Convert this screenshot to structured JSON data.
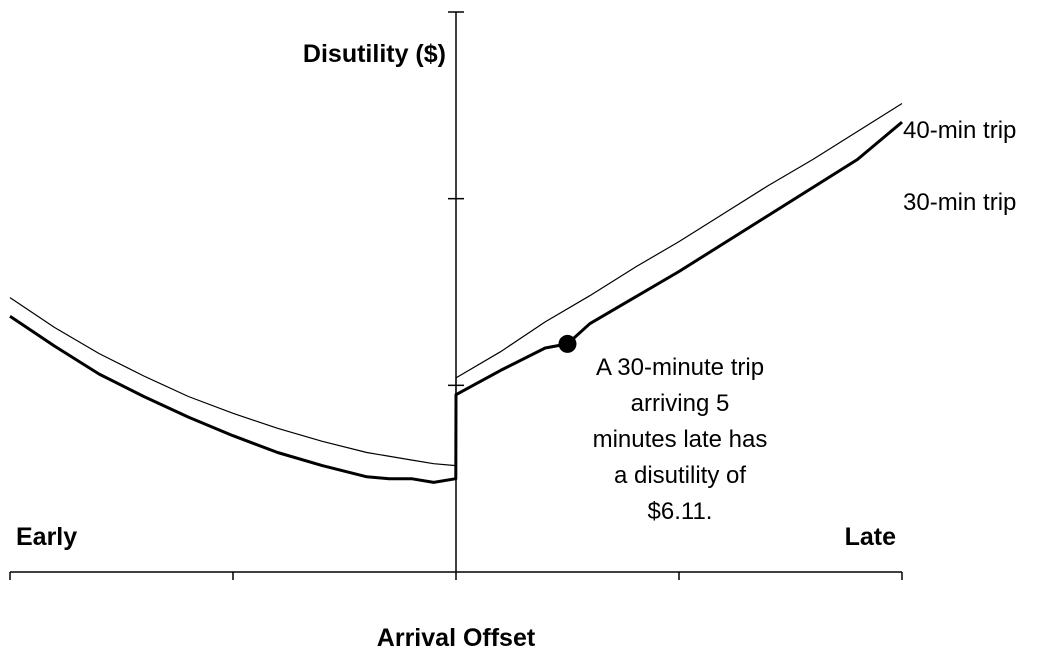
{
  "chart_data": {
    "type": "line",
    "title": "",
    "ylabel": "Disutility ($)",
    "xlabel": "Arrival Offset",
    "x_end_labels": {
      "left": "Early",
      "right": "Late"
    },
    "xlim": [
      -20,
      20
    ],
    "ylim": [
      0,
      15
    ],
    "x_ticks": [
      -20,
      -10,
      0,
      10,
      20
    ],
    "y_ticks": [
      5,
      10,
      15
    ],
    "grid": false,
    "legend": "inline-right",
    "series": [
      {
        "name": "40-min trip",
        "color": "#000000",
        "x": [
          -20,
          -18,
          -16,
          -14,
          -12,
          -10,
          -8,
          -6,
          -4,
          -2,
          -1,
          -0.01,
          0,
          2,
          4,
          6,
          8,
          10,
          12,
          14,
          16,
          18,
          20
        ],
        "y": [
          7.35,
          6.55,
          5.85,
          5.25,
          4.7,
          4.25,
          3.85,
          3.5,
          3.2,
          3.0,
          2.9,
          2.85,
          5.2,
          5.9,
          6.7,
          7.4,
          8.15,
          8.85,
          9.6,
          10.35,
          11.05,
          11.8,
          12.55
        ],
        "width": 1.2
      },
      {
        "name": "30-min trip",
        "color": "#000000",
        "x": [
          -20,
          -18,
          -16,
          -14,
          -12,
          -10,
          -8,
          -6,
          -4,
          -3,
          -2,
          -1,
          -0.01,
          0,
          2,
          4,
          5,
          6,
          8,
          10,
          12,
          14,
          16,
          18,
          20
        ],
        "y": [
          6.85,
          6.05,
          5.3,
          4.7,
          4.15,
          3.65,
          3.2,
          2.85,
          2.55,
          2.5,
          2.5,
          2.4,
          2.5,
          4.75,
          5.4,
          6.0,
          6.11,
          6.65,
          7.35,
          8.05,
          8.8,
          9.55,
          10.3,
          11.05,
          12.05
        ],
        "width": 3
      }
    ],
    "highlight_point": {
      "series": "30-min trip",
      "x": 5,
      "y": 6.11
    },
    "annotation_lines": [
      "A 30-minute trip",
      "arriving 5",
      "minutes late has",
      "a disutility of",
      "$6.11."
    ]
  }
}
